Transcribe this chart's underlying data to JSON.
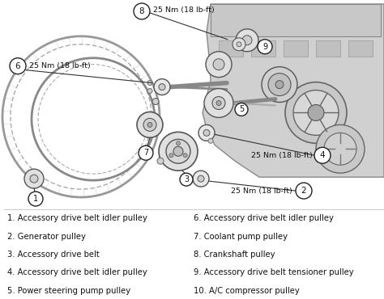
{
  "background_color": "#ffffff",
  "legend_items_left": [
    "1. Accessory drive belt idler pulley",
    "2. Generator pulley",
    "3. Accessory drive belt",
    "4. Accessory drive belt idler pulley",
    "5. Power steering pump pulley"
  ],
  "legend_items_right": [
    "6. Accessory drive belt idler pulley",
    "7. Coolant pump pulley",
    "8. Crankshaft pulley",
    "9. Accessory drive belt tensioner pulley",
    "10. A/C compressor pulley"
  ],
  "font_size_legend": 7.2,
  "line_color": "#333333",
  "circle_bg": "#ffffff",
  "circle_edge": "#222222",
  "torque_fontsize": 6.8,
  "label_fontsize": 7.0,
  "belt_color": "#888888",
  "engine_gray": "#bbbbbb",
  "light_gray": "#dddddd"
}
